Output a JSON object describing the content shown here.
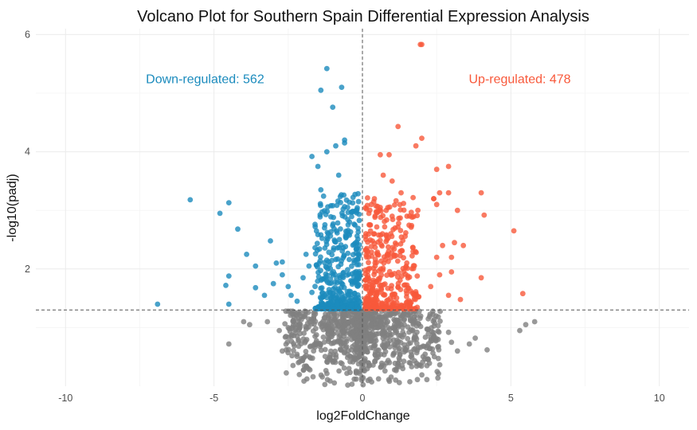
{
  "chart_data": {
    "type": "scatter",
    "title": "Volcano Plot for Southern Spain Differential Expression Analysis",
    "xlabel": "log2FoldChange",
    "ylabel": "-log10(padj)",
    "xlim": [
      -11.0,
      11.0
    ],
    "ylim": [
      0.0,
      6.1
    ],
    "x_ticks": [
      -10,
      -5,
      0,
      5,
      10
    ],
    "y_ticks": [
      2,
      4,
      6
    ],
    "grid": true,
    "thresholds": {
      "x": 0,
      "y": 1.3
    },
    "colors": {
      "down": "#1b8bbd",
      "up": "#f8593b",
      "ns": "#808080"
    },
    "annotations": [
      {
        "text": "Down-regulated: 562",
        "x": -5.3,
        "y": 5.25,
        "group": "down"
      },
      {
        "text": "Up-regulated: 478",
        "x": 5.3,
        "y": 5.25,
        "group": "up"
      }
    ],
    "series": [
      {
        "group": "down",
        "values": [
          [
            -6.9,
            1.4
          ],
          [
            -5.8,
            3.18
          ],
          [
            -4.8,
            2.95
          ],
          [
            -4.5,
            3.13
          ],
          [
            -4.2,
            2.68
          ],
          [
            -4.5,
            1.88
          ],
          [
            -4.5,
            1.4
          ],
          [
            -4.6,
            1.72
          ],
          [
            -3.9,
            2.25
          ],
          [
            -3.6,
            2.05
          ],
          [
            -3.1,
            2.48
          ],
          [
            -3.6,
            1.68
          ],
          [
            -3.3,
            1.55
          ],
          [
            -3.0,
            1.75
          ],
          [
            -2.7,
            1.9
          ],
          [
            -2.9,
            2.1
          ],
          [
            -2.7,
            2.12
          ],
          [
            -2.5,
            1.7
          ],
          [
            -2.4,
            1.55
          ],
          [
            -2.2,
            1.45
          ],
          [
            -2.0,
            1.85
          ],
          [
            -1.9,
            2.25
          ],
          [
            -1.8,
            2.05
          ],
          [
            -1.7,
            1.6
          ],
          [
            -1.5,
            1.35
          ],
          [
            -1.2,
            5.42
          ],
          [
            -0.7,
            5.1
          ],
          [
            -1.4,
            5.05
          ],
          [
            -1.0,
            4.76
          ],
          [
            -1.7,
            3.92
          ],
          [
            -1.5,
            3.75
          ],
          [
            -1.2,
            4.0
          ],
          [
            -0.9,
            4.1
          ],
          [
            -0.6,
            4.2
          ],
          [
            -0.6,
            4.15
          ],
          [
            -0.8,
            3.6
          ],
          [
            -1.4,
            3.35
          ],
          [
            -0.5,
            3.05
          ]
        ]
      },
      {
        "group": "up",
        "values": [
          [
            1.95,
            5.83
          ],
          [
            2.0,
            5.83
          ],
          [
            1.2,
            4.43
          ],
          [
            2.0,
            4.23
          ],
          [
            1.8,
            4.1
          ],
          [
            0.6,
            3.95
          ],
          [
            0.9,
            3.95
          ],
          [
            2.5,
            3.7
          ],
          [
            2.9,
            3.75
          ],
          [
            2.6,
            3.3
          ],
          [
            2.9,
            3.3
          ],
          [
            4.0,
            3.3
          ],
          [
            2.4,
            3.2
          ],
          [
            2.4,
            3.2
          ],
          [
            2.5,
            3.1
          ],
          [
            3.2,
            3.0
          ],
          [
            4.1,
            2.92
          ],
          [
            5.1,
            2.65
          ],
          [
            3.4,
            2.4
          ],
          [
            3.1,
            2.45
          ],
          [
            2.7,
            2.4
          ],
          [
            2.5,
            2.2
          ],
          [
            3.0,
            2.2
          ],
          [
            4.0,
            1.85
          ],
          [
            5.4,
            1.58
          ],
          [
            3.0,
            1.95
          ],
          [
            2.6,
            1.9
          ],
          [
            2.3,
            1.7
          ],
          [
            2.9,
            1.55
          ],
          [
            3.3,
            1.48
          ],
          [
            0.7,
            3.6
          ],
          [
            1.0,
            3.5
          ],
          [
            1.3,
            3.3
          ],
          [
            0.8,
            3.0
          ],
          [
            0.3,
            3.1
          ],
          [
            1.5,
            2.9
          ],
          [
            1.1,
            2.7
          ],
          [
            0.4,
            2.6
          ]
        ]
      },
      {
        "group": "ns",
        "values": [
          [
            5.8,
            1.1
          ],
          [
            5.5,
            1.05
          ],
          [
            5.3,
            0.95
          ],
          [
            4.2,
            0.62
          ],
          [
            3.8,
            0.82
          ],
          [
            3.6,
            0.72
          ],
          [
            2.9,
            0.92
          ],
          [
            3.0,
            0.75
          ],
          [
            3.2,
            0.6
          ],
          [
            -4.5,
            0.72
          ],
          [
            -4.0,
            1.1
          ],
          [
            -3.8,
            1.05
          ],
          [
            -3.2,
            1.1
          ],
          [
            -2.8,
            0.95
          ],
          [
            -2.7,
            0.6
          ],
          [
            -2.5,
            1.0
          ],
          [
            -2.2,
            0.85
          ]
        ]
      }
    ]
  }
}
